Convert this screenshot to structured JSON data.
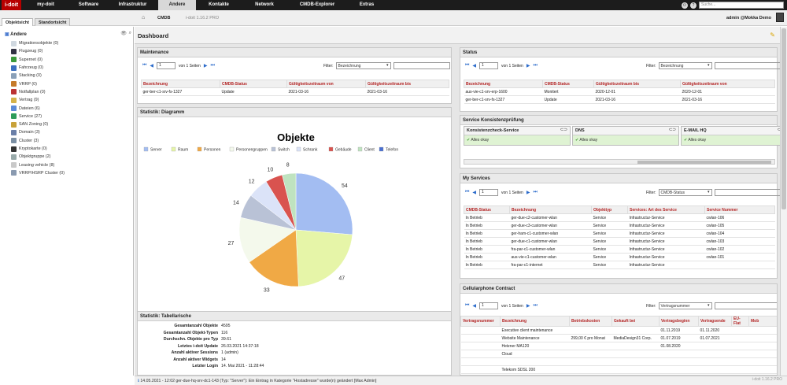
{
  "app": {
    "logo": "i-doit",
    "menu": [
      "my-doit",
      "Software",
      "Infrastruktur",
      "Andere",
      "Kontakte",
      "Network",
      "CMDB-Explorer",
      "Extras"
    ],
    "active_menu": "Andere",
    "search_placeholder": "Suche...",
    "help": "?",
    "power": "⏻"
  },
  "subbar": {
    "tab_object_view": "Objektsicht",
    "tab_location_view": "Standortsicht",
    "breadcrumb": "CMDB",
    "version": "i-doit 1.16.2 PRO",
    "user": "admin @Mokka Demo"
  },
  "sidebar": {
    "root": "Andere",
    "items": [
      {
        "label": "Migrationsobjekte (0)",
        "color": "#d0d8e0"
      },
      {
        "label": "Flugzeug (0)",
        "color": "#334"
      },
      {
        "label": "Supernet (0)",
        "color": "#3b9a3b"
      },
      {
        "label": "Fahrzeug (0)",
        "color": "#3a6fbf"
      },
      {
        "label": "Stacking (0)",
        "color": "#8aa0b8"
      },
      {
        "label": "VRRP (0)",
        "color": "#c57a2a"
      },
      {
        "label": "Notfallplan (0)",
        "color": "#b33"
      },
      {
        "label": "Vertrag (9)",
        "color": "#d4b24a"
      },
      {
        "label": "Dateien (6)",
        "color": "#5a8ad8"
      },
      {
        "label": "Service (27)",
        "color": "#2d9c5a"
      },
      {
        "label": "SAN Zoning (0)",
        "color": "#c8a23a"
      },
      {
        "label": "Domain (3)",
        "color": "#6a7fa8"
      },
      {
        "label": "Cluster (3)",
        "color": "#7b8fa3"
      },
      {
        "label": "Kryptokarte (0)",
        "color": "#333"
      },
      {
        "label": "Objektgruppe (2)",
        "color": "#9aa"
      },
      {
        "label": "Leasing vehicle (8)",
        "color": "#c9c9c9"
      },
      {
        "label": "VRRP/HSRP Cluster (0)",
        "color": "#8a9ab0"
      }
    ]
  },
  "dashboard": {
    "title": "Dashboard"
  },
  "pager": {
    "page": "1",
    "of_pages": "von 1 Seiten",
    "filter_label": "Filter:"
  },
  "maintenance": {
    "title": "Maintenance",
    "filter_select": "Bezeichnung",
    "columns": [
      "Bezeichnung",
      "CMDB-Status",
      "Gültigkeitszeitraum von",
      "Gültigkeitszeitraum bis"
    ],
    "rows": [
      [
        "ger-ber-c1-srv-fs-1327",
        "Update",
        "2021-03-16",
        "2021-03-16"
      ]
    ]
  },
  "diagram": {
    "title": "Statistik: Diagramm"
  },
  "chart_data": {
    "type": "pie",
    "title": "Objekte",
    "categories": [
      "Server",
      "Raum",
      "Personen",
      "Personengruppen",
      "Switch",
      "Schrank",
      "Gebäude",
      "Client",
      "Telefon"
    ],
    "values": [
      54,
      47,
      33,
      27,
      14,
      12,
      10,
      8,
      0
    ],
    "colors": [
      "#a3bdf2",
      "#e6f5a8",
      "#f0a945",
      "#f4f9ec",
      "#b9c2d6",
      "#dbe3f8",
      "#d9534f",
      "#bfe3c0",
      "#4a6fd1"
    ],
    "legend": "top"
  },
  "stats": {
    "title": "Statistik: Tabellarische",
    "rows": [
      [
        "Gesamtanzahl Objekte",
        "4595"
      ],
      [
        "Gesamtanzahl Objekt-Typen",
        "116"
      ],
      [
        "Durchschn. Objekte pro Typ",
        "39.61"
      ],
      [
        "Letztes i-doit Update",
        "26.03.2021 14:37:18"
      ],
      [
        "Anzahl aktiver Sessions",
        "1 (admin)"
      ],
      [
        "Anzahl aktiver Widgets",
        "14"
      ],
      [
        "Letzter Login",
        "14. Mai 2021 - 11:28:44"
      ]
    ]
  },
  "status": {
    "title": "Status",
    "filter_select": "Bezeichnung",
    "columns": [
      "Bezeichnung",
      "CMDB-Status",
      "Gültigkeitszeitraum bis",
      "Gültigkeitszeitraum von"
    ],
    "rows": [
      [
        "aus-vie-c1-srv-erp-1600",
        "Monitert",
        "2020-12-01",
        "2020-12-01"
      ],
      [
        "ger-ber-c1-srv-fs-1327",
        "Update",
        "2021-03-16",
        "2021-03-16"
      ]
    ]
  },
  "consistency": {
    "title": "Service Konsistenzprüfung",
    "cards": [
      {
        "title": "Konsistenzcheck-Service",
        "status": "Alles okay"
      },
      {
        "title": "DNS",
        "status": "Alles okay"
      },
      {
        "title": "E-MAIL HQ",
        "status": "Alles okay"
      }
    ]
  },
  "services": {
    "title": "My Services",
    "filter_select": "CMDB-Status",
    "columns": [
      "CMDB-Status",
      "Bezeichnung",
      "Objekttyp",
      "Services: Art des Service",
      "Service Nummer"
    ],
    "rows": [
      [
        "In Betrieb",
        "ger-due-c2-customer-wlan",
        "Service",
        "Infrastructur-Service",
        "cwlan-106"
      ],
      [
        "In Betrieb",
        "ger-due-c3-customer-wlan",
        "Service",
        "Infrastructur-Service",
        "cwlan-105"
      ],
      [
        "In Betrieb",
        "ger-ham-c1-customer-wlan",
        "Service",
        "Infrastructur-Service",
        "cwlan-104"
      ],
      [
        "In Betrieb",
        "ger-due-c1-customer-wlan",
        "Service",
        "Infrastructur-Service",
        "cwlan-103"
      ],
      [
        "In Betrieb",
        "fra-par-c1-customer-wlan",
        "Service",
        "Infrastructur-Service",
        "cwlan-102"
      ],
      [
        "In Betrieb",
        "aus-vie-c1-customer-wlan",
        "Service",
        "Infrastructur-Service",
        "cwlan-101"
      ],
      [
        "In Betrieb",
        "fra-par-c1-internet",
        "Service",
        "Infrastructur-Service",
        ""
      ]
    ]
  },
  "cellular": {
    "title": "Cellularphone Contract",
    "filter_select": "Vertragsnummer",
    "columns": [
      "Vertragsnummer",
      "Bezeichnung",
      "Betriebskosten",
      "Gekauft bei",
      "Vertragsbeginn",
      "Vertragsende",
      "EU-Flat",
      "Mob"
    ],
    "rows": [
      [
        "",
        "Executive client maintenance",
        "",
        "",
        "01.11.2019",
        "01.11.2020",
        "",
        ""
      ],
      [
        "",
        "Website Maintenance",
        "299,00 € pro Monat",
        "MediaDesign31 Corp.",
        "01.07.2019",
        "01.07.2021",
        "",
        ""
      ],
      [
        "",
        "Hetzner MA120",
        "",
        "",
        "01.08.2020",
        "",
        "",
        ""
      ],
      [
        "",
        "Cloud",
        "",
        "",
        "",
        "",
        "",
        ""
      ],
      [
        "",
        "",
        "",
        "",
        "",
        "",
        "",
        ""
      ],
      [
        "",
        "Telekom SDSL 200",
        "",
        "",
        "",
        "",
        "",
        ""
      ]
    ]
  },
  "statusbar": {
    "message": "14.05.2021 - 12:02 ger-due-hq-srv-dc1-143 (Typ: \"Server\"): Ein Eintrag in Kategorie \"Hostadresse\" wurde(n) geändert [Max Admin]",
    "version": "i-doit 1.16.2 PRO"
  }
}
